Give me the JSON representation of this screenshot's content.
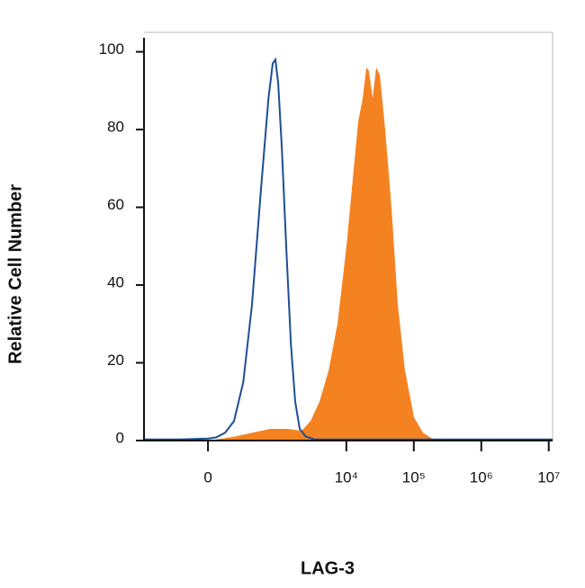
{
  "chart_data": {
    "type": "histogram-overlay",
    "y_label": "Relative Cell Number",
    "x_label": "LAG-3",
    "xscale": "biexponential",
    "xlim": [
      -780,
      11400000
    ],
    "xticks": [
      0,
      {
        "value": 10000,
        "label": "10⁴"
      },
      {
        "value": 100000,
        "label": "10⁵"
      },
      {
        "value": 1000000,
        "label": "10⁶"
      },
      {
        "value": 10000000,
        "label": "10⁷"
      }
    ],
    "ylim": [
      0,
      105
    ],
    "yticks": [
      0,
      20,
      40,
      60,
      80,
      100
    ],
    "series": [
      {
        "style": "filled",
        "color": "#f58220",
        "x": [
          50,
          180,
          380,
          730,
          1360,
          2170,
          2940,
          4000,
          5450,
          7400,
          10060,
          12900,
          15000,
          17500,
          19800,
          21700,
          24500,
          27700,
          31400,
          37700,
          46700,
          57900,
          74000,
          100600,
          137000,
          186000,
          253000
        ],
        "values": [
          0.3,
          1,
          2,
          3,
          3,
          2.5,
          5,
          10,
          18,
          30,
          50,
          70,
          82,
          88,
          96,
          95,
          88,
          96,
          94,
          80,
          60,
          35,
          18,
          6,
          2,
          0.5,
          0
        ]
      },
      {
        "style": "line",
        "color": "#1f4e96",
        "x": [
          -780,
          -200,
          0,
          50,
          110,
          180,
          270,
          380,
          530,
          690,
          800,
          880,
          970,
          1100,
          1280,
          1500,
          1740,
          2030,
          2520,
          3400,
          16000,
          340000,
          11400000
        ],
        "values": [
          0.3,
          0.3,
          0.5,
          0.8,
          2,
          5,
          15,
          35,
          65,
          88,
          97,
          98,
          92,
          75,
          50,
          25,
          10,
          3,
          1,
          0.3,
          0.3,
          0.3,
          0.3
        ]
      }
    ]
  }
}
